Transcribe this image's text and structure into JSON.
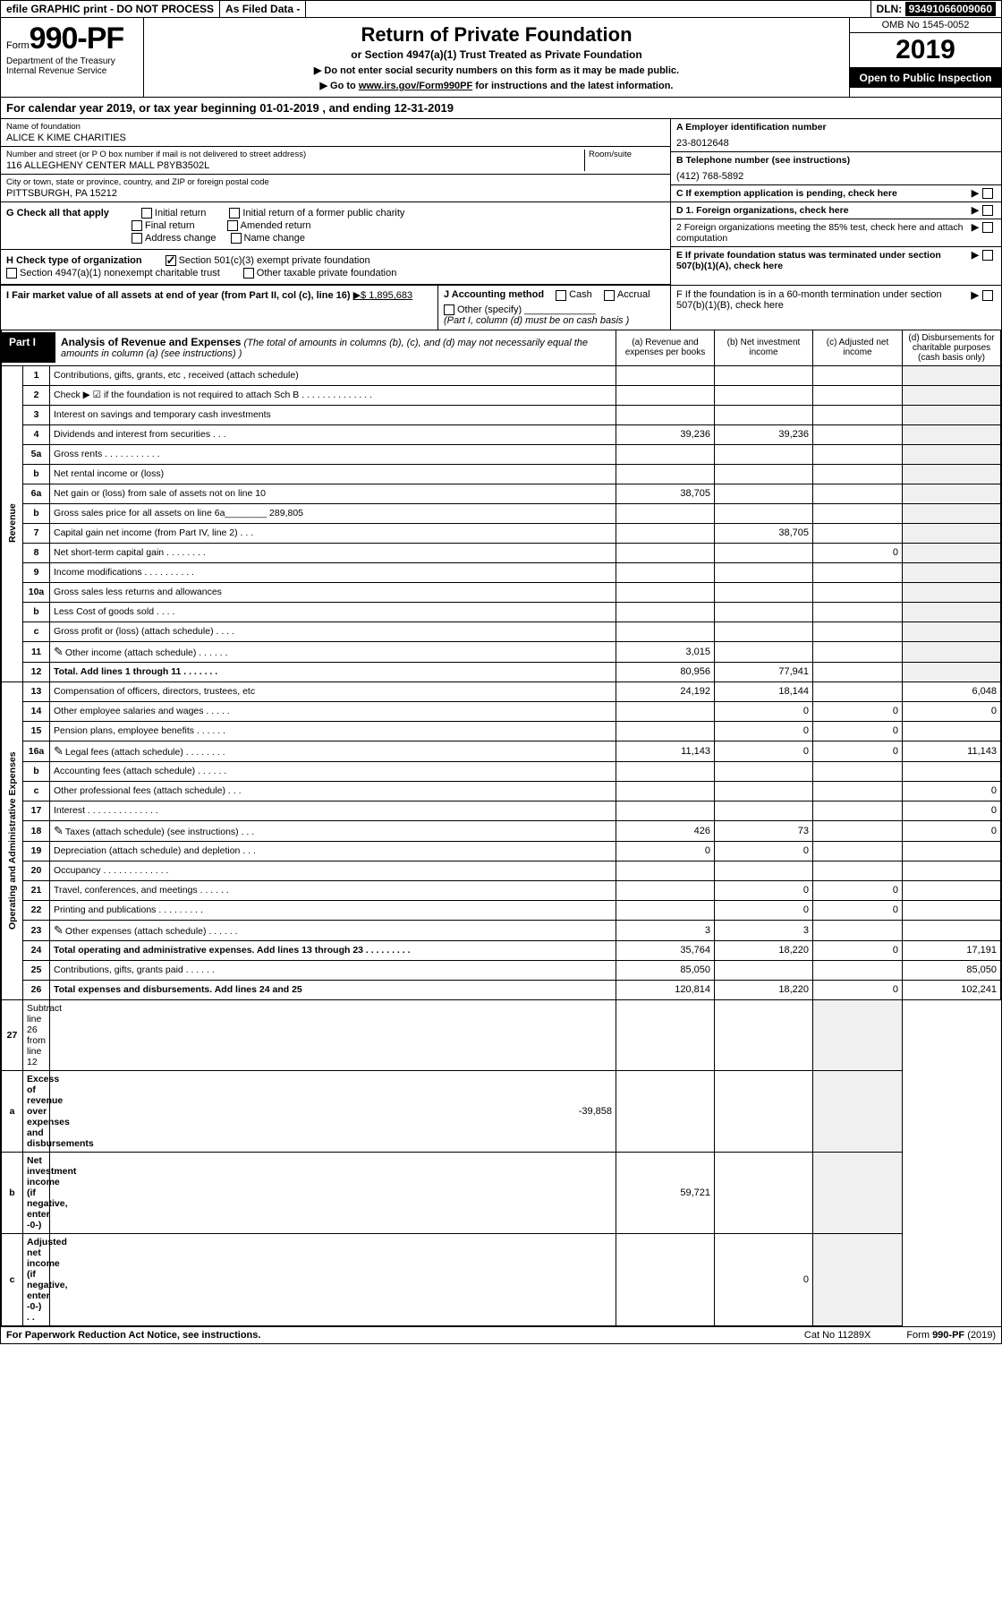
{
  "topbar": {
    "efile": "efile GRAPHIC print - DO NOT PROCESS",
    "asfiled": "As Filed Data -",
    "dln_lbl": "DLN:",
    "dln": "93491066009060"
  },
  "header": {
    "form_word": "Form",
    "form_no": "990-PF",
    "dept": "Department of the Treasury",
    "irs": "Internal Revenue Service",
    "title": "Return of Private Foundation",
    "subtitle": "or Section 4947(a)(1) Trust Treated as Private Foundation",
    "instr1": "▶ Do not enter social security numbers on this form as it may be made public.",
    "instr2_pre": "▶ Go to ",
    "instr2_link": "www.irs.gov/Form990PF",
    "instr2_post": " for instructions and the latest information.",
    "omb": "OMB No 1545-0052",
    "year": "2019",
    "open": "Open to Public Inspection"
  },
  "cal": {
    "text_pre": "For calendar year 2019, or tax year beginning ",
    "begin": "01-01-2019",
    "mid": " , and ending ",
    "end": "12-31-2019"
  },
  "id": {
    "name_lbl": "Name of foundation",
    "name": "ALICE K KIME CHARITIES",
    "addr_lbl": "Number and street (or P O  box number if mail is not delivered to street address)",
    "room_lbl": "Room/suite",
    "addr": "116 ALLEGHENY CENTER MALL P8YB3502L",
    "city_lbl": "City or town, state or province, country, and ZIP or foreign postal code",
    "city": "PITTSBURGH, PA  15212",
    "a_lbl": "A Employer identification number",
    "a_val": "23-8012648",
    "b_lbl": "B Telephone number (see instructions)",
    "b_val": "(412) 768-5892",
    "c_lbl": "C If exemption application is pending, check here",
    "d1": "D 1. Foreign organizations, check here",
    "d2": "2 Foreign organizations meeting the 85% test, check here and attach computation",
    "e": "E  If private foundation status was terminated under section 507(b)(1)(A), check here",
    "f": "F  If the foundation is in a 60-month termination under section 507(b)(1)(B), check here"
  },
  "g": {
    "lbl": "G Check all that apply",
    "opts": [
      "Initial return",
      "Initial return of a former public charity",
      "Final return",
      "Amended return",
      "Address change",
      "Name change"
    ]
  },
  "h": {
    "lbl": "H Check type of organization",
    "o1": "Section 501(c)(3) exempt private foundation",
    "o2": "Section 4947(a)(1) nonexempt charitable trust",
    "o3": "Other taxable private foundation"
  },
  "i": {
    "lbl": "I Fair market value of all assets at end of year (from Part II, col  (c), line 16)",
    "val": "▶$  1,895,683"
  },
  "j": {
    "lbl": "J Accounting method",
    "cash": "Cash",
    "accrual": "Accrual",
    "other": "Other (specify)",
    "note": "(Part I, column (d) must be on cash basis )"
  },
  "part1": {
    "lbl": "Part I",
    "title": "Analysis of Revenue and Expenses",
    "title_note": "(The total of amounts in columns (b), (c), and (d) may not necessarily equal the amounts in column (a) (see instructions) )",
    "col_a": "(a) Revenue and expenses per books",
    "col_b": "(b) Net investment income",
    "col_c": "(c) Adjusted net income",
    "col_d": "(d) Disbursements for charitable purposes (cash basis only)",
    "rev_lbl": "Revenue",
    "exp_lbl": "Operating and Administrative Expenses"
  },
  "rows": [
    {
      "n": "1",
      "d": "Contributions, gifts, grants, etc , received (attach schedule)"
    },
    {
      "n": "2",
      "d": "Check ▶ ☑ if the foundation is not required to attach Sch  B   .  .  .  .  .  .  .  .  .  .  .  .  .  ."
    },
    {
      "n": "3",
      "d": "Interest on savings and temporary cash investments"
    },
    {
      "n": "4",
      "d": "Dividends and interest from securities  .  .  .",
      "a": "39,236",
      "b": "39,236"
    },
    {
      "n": "5a",
      "d": "Gross rents  .  .  .  .  .  .  .  .  .  .  ."
    },
    {
      "n": "b",
      "d": "Net rental income or (loss)  "
    },
    {
      "n": "6a",
      "d": "Net gain or (loss) from sale of assets not on line 10",
      "a": "38,705"
    },
    {
      "n": "b",
      "d": "Gross sales price for all assets on line 6a________ 289,805"
    },
    {
      "n": "7",
      "d": "Capital gain net income (from Part IV, line 2)  .  .  .",
      "b": "38,705"
    },
    {
      "n": "8",
      "d": "Net short-term capital gain  .  .  .  .  .  .  .  .",
      "c": "0"
    },
    {
      "n": "9",
      "d": "Income modifications  .  .  .  .  .  .  .  .  .  ."
    },
    {
      "n": "10a",
      "d": "Gross sales less returns and allowances "
    },
    {
      "n": "b",
      "d": "Less  Cost of goods sold  .  .  .  ."
    },
    {
      "n": "c",
      "d": "Gross profit or (loss) (attach schedule)  .  .  .  ."
    },
    {
      "n": "11",
      "d": "Other income (attach schedule)  .  .  .  .  .  .",
      "a": "3,015",
      "icon": true
    },
    {
      "n": "12",
      "d": "Total. Add lines 1 through 11  .  .  .  .  .  .  .",
      "a": "80,956",
      "b": "77,941",
      "bold": true
    }
  ],
  "exp_rows": [
    {
      "n": "13",
      "d": "Compensation of officers, directors, trustees, etc",
      "a": "24,192",
      "b": "18,144",
      "dd": "6,048"
    },
    {
      "n": "14",
      "d": "Other employee salaries and wages  .  .  .  .  .",
      "b": "0",
      "c": "0",
      "dd": "0"
    },
    {
      "n": "15",
      "d": "Pension plans, employee benefits  .  .  .  .  .  .",
      "b": "0",
      "c": "0"
    },
    {
      "n": "16a",
      "d": "Legal fees (attach schedule) .  .  .  .  .  .  .  .",
      "a": "11,143",
      "b": "0",
      "c": "0",
      "dd": "11,143",
      "icon": true
    },
    {
      "n": "b",
      "d": "Accounting fees (attach schedule)  .  .  .  .  .  ."
    },
    {
      "n": "c",
      "d": "Other professional fees (attach schedule)  .  .  .",
      "dd": "0"
    },
    {
      "n": "17",
      "d": "Interest  .  .  .  .  .  .  .  .  .  .  .  .  .  .",
      "dd": "0"
    },
    {
      "n": "18",
      "d": "Taxes (attach schedule) (see instructions)  .  .  .",
      "a": "426",
      "b": "73",
      "dd": "0",
      "icon": true
    },
    {
      "n": "19",
      "d": "Depreciation (attach schedule) and depletion  .  .  .",
      "a": "0",
      "b": "0"
    },
    {
      "n": "20",
      "d": "Occupancy  .  .  .  .  .  .  .  .  .  .  .  .  ."
    },
    {
      "n": "21",
      "d": "Travel, conferences, and meetings .  .  .  .  .  .",
      "b": "0",
      "c": "0"
    },
    {
      "n": "22",
      "d": "Printing and publications .  .  .  .  .  .  .  .  .",
      "b": "0",
      "c": "0"
    },
    {
      "n": "23",
      "d": "Other expenses (attach schedule) .  .  .  .  .  .",
      "a": "3",
      "b": "3",
      "icon": true
    },
    {
      "n": "24",
      "d": "Total operating and administrative expenses. Add lines 13 through 23  .  .  .  .  .  .  .  .  .",
      "a": "35,764",
      "b": "18,220",
      "c": "0",
      "dd": "17,191",
      "bold": true
    },
    {
      "n": "25",
      "d": "Contributions, gifts, grants paid  .  .  .  .  .  .",
      "a": "85,050",
      "dd": "85,050"
    },
    {
      "n": "26",
      "d": "Total expenses and disbursements. Add lines 24 and 25",
      "a": "120,814",
      "b": "18,220",
      "c": "0",
      "dd": "102,241",
      "bold": true
    }
  ],
  "tail_rows": [
    {
      "n": "27",
      "d": "Subtract line 26 from line 12"
    },
    {
      "n": "a",
      "d": "Excess of revenue over expenses and disbursements",
      "a": "-39,858",
      "bold": true
    },
    {
      "n": "b",
      "d": "Net investment income (if negative, enter -0-)",
      "b": "59,721",
      "bold": true
    },
    {
      "n": "c",
      "d": "Adjusted net income (if negative, enter -0-)  .  .",
      "c": "0",
      "bold": true
    }
  ],
  "footer": {
    "left": "For Paperwork Reduction Act Notice, see instructions.",
    "mid": "Cat  No  11289X",
    "right": "Form 990-PF (2019)"
  }
}
